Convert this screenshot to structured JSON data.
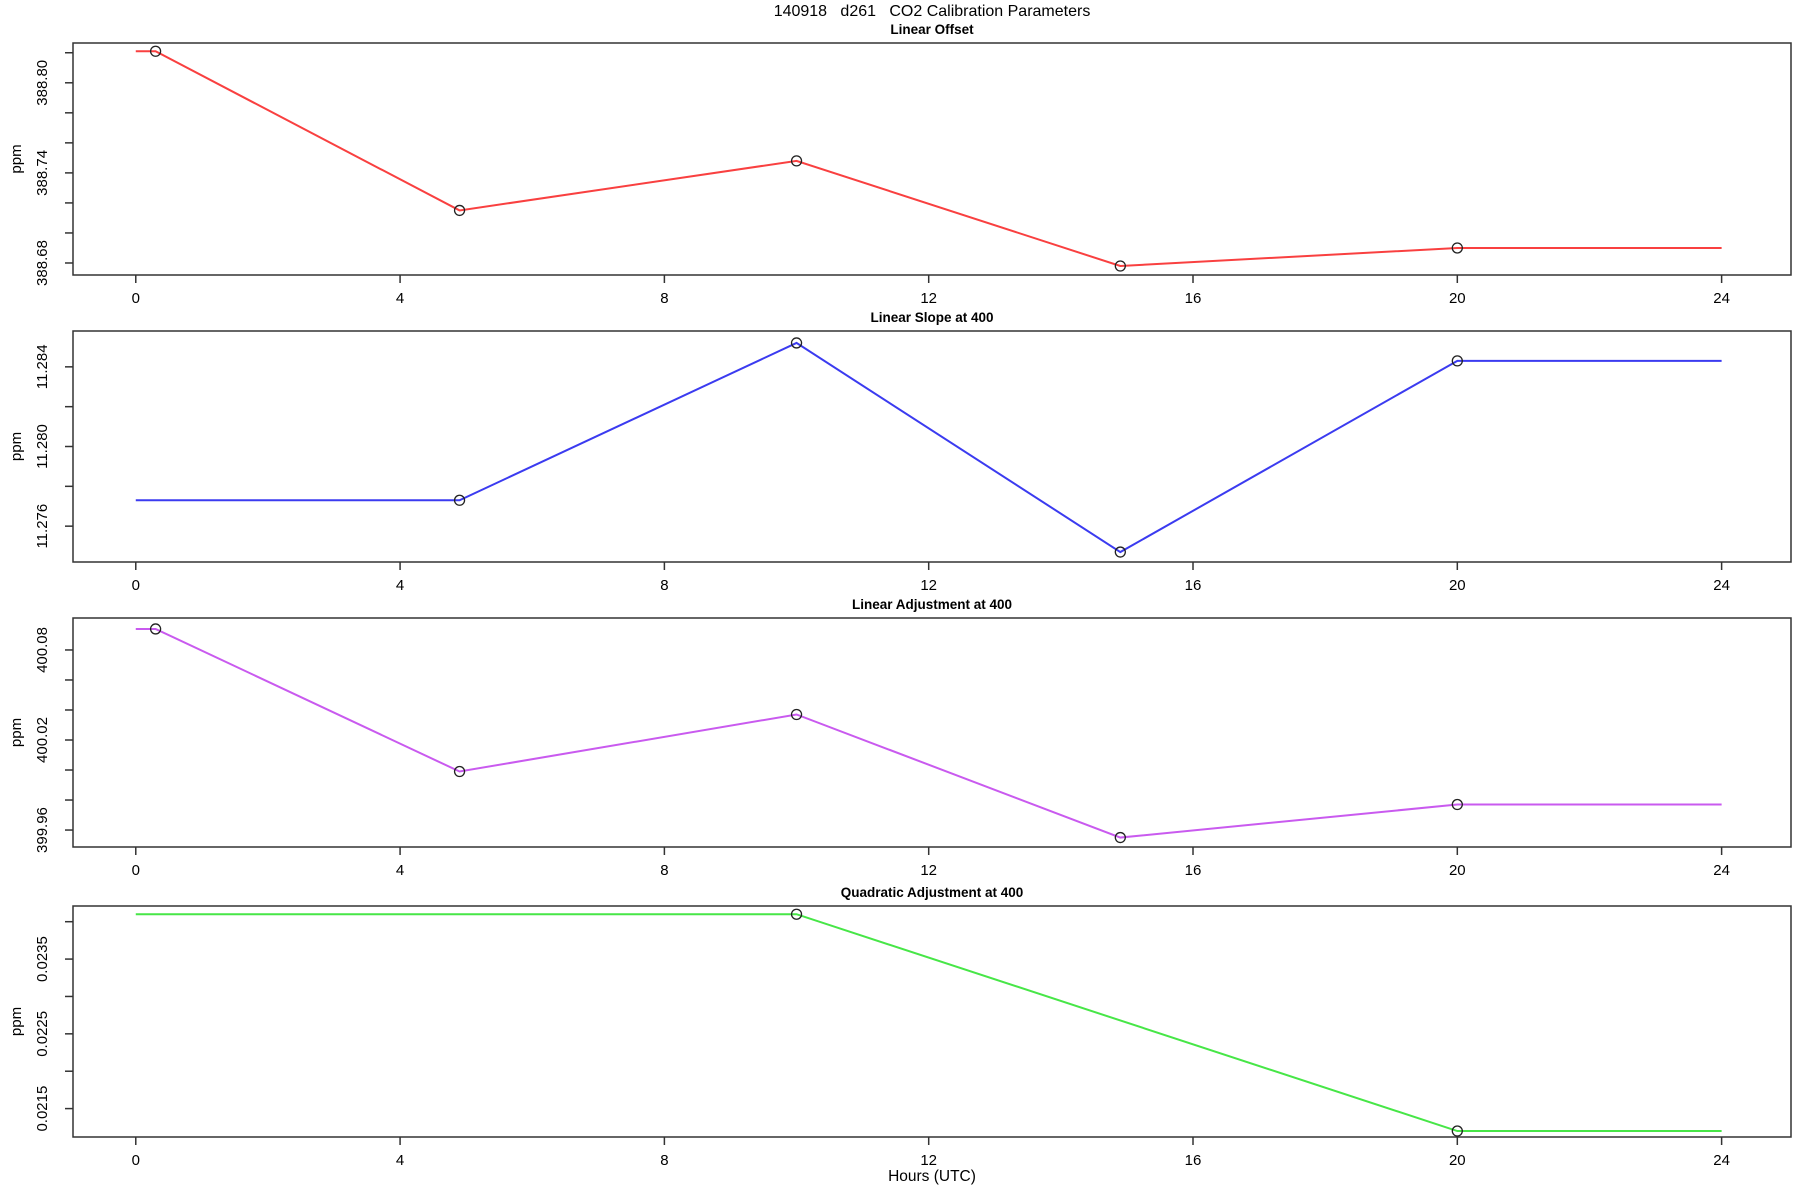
{
  "title": "140918   d261   CO2 Calibration Parameters",
  "xlabel": "Hours (UTC)",
  "chart_data": {
    "type": "line",
    "x_ticks": [
      0,
      4,
      8,
      12,
      16,
      20,
      24
    ],
    "xlim": [
      -0.95,
      25.05
    ],
    "panels": [
      {
        "title": "Linear Offset",
        "ylabel": "ppm",
        "color": "#f94040",
        "ylim": [
          388.672,
          388.8265
        ],
        "yticks": [
          388.68,
          388.7,
          388.72,
          388.74,
          388.76,
          388.78,
          388.8,
          388.82
        ],
        "ytick_labels": [
          "388.68",
          "",
          "",
          "388.74",
          "",
          "",
          "388.80",
          ""
        ],
        "line": {
          "x": [
            0,
            0.3,
            4.9,
            10,
            14.9,
            20,
            24
          ],
          "y": [
            388.821,
            388.821,
            388.715,
            388.748,
            388.678,
            388.69,
            388.69
          ]
        },
        "markers": {
          "x": [
            0.3,
            4.9,
            10,
            14.9,
            20
          ],
          "y": [
            388.821,
            388.715,
            388.748,
            388.678,
            388.69
          ]
        }
      },
      {
        "title": "Linear Slope at 400",
        "ylabel": "ppm",
        "color": "#3b3bf0",
        "ylim": [
          11.2742,
          11.2858
        ],
        "yticks": [
          11.276,
          11.278,
          11.28,
          11.282,
          11.284
        ],
        "ytick_labels": [
          "11.276",
          "",
          "11.280",
          "",
          "11.284"
        ],
        "line": {
          "x": [
            0,
            4.9,
            10,
            14.9,
            20,
            24
          ],
          "y": [
            11.2773,
            11.2773,
            11.2852,
            11.2747,
            11.2843,
            11.2843
          ]
        },
        "markers": {
          "x": [
            4.9,
            10,
            14.9,
            20
          ],
          "y": [
            11.2773,
            11.2852,
            11.2747,
            11.2843
          ]
        }
      },
      {
        "title": "Linear Adjustment at 400",
        "ylabel": "ppm",
        "color": "#c95aef",
        "ylim": [
          399.9487,
          400.1013
        ],
        "yticks": [
          399.96,
          399.98,
          400.0,
          400.02,
          400.04,
          400.06,
          400.08
        ],
        "ytick_labels": [
          "399.96",
          "",
          "",
          "400.02",
          "",
          "",
          "400.08"
        ],
        "line": {
          "x": [
            0,
            0.3,
            4.9,
            10,
            14.9,
            20,
            24
          ],
          "y": [
            400.094,
            400.094,
            399.999,
            400.037,
            399.955,
            399.977,
            399.977
          ]
        },
        "markers": {
          "x": [
            0.3,
            4.9,
            10,
            14.9,
            20
          ],
          "y": [
            400.094,
            399.999,
            400.037,
            399.955,
            399.977
          ]
        }
      },
      {
        "title": "Quadratic Adjustment at 400",
        "ylabel": "ppm",
        "color": "#47e647",
        "ylim": [
          0.02112,
          0.02421
        ],
        "yticks": [
          0.0215,
          0.022,
          0.0225,
          0.023,
          0.0235,
          0.024
        ],
        "ytick_labels": [
          "0.0215",
          "",
          "0.0225",
          "",
          "0.0235",
          ""
        ],
        "line": {
          "x": [
            0,
            10,
            20,
            24
          ],
          "y": [
            0.0241,
            0.0241,
            0.0212,
            0.0212
          ]
        },
        "markers": {
          "x": [
            10,
            20
          ],
          "y": [
            0.0241,
            0.0212
          ]
        }
      }
    ]
  }
}
